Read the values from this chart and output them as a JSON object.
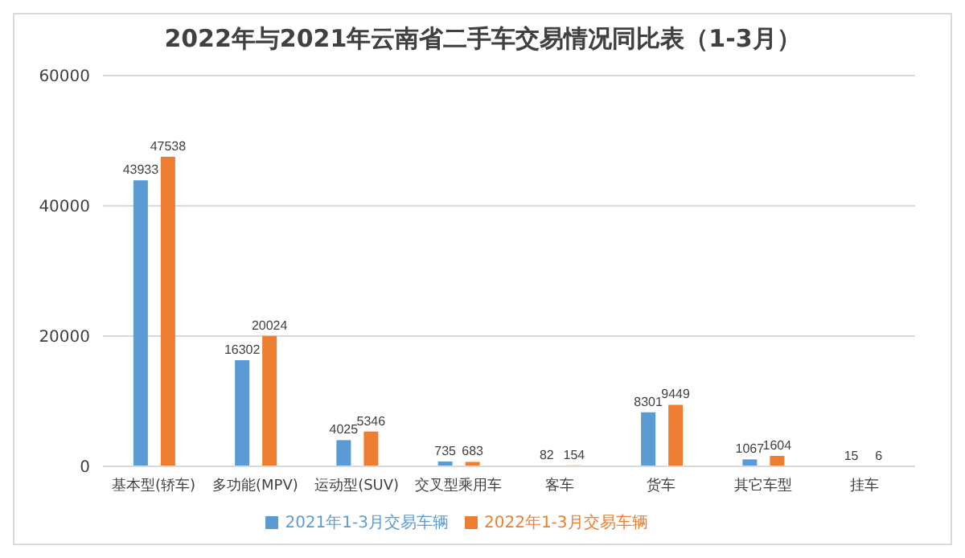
{
  "chart_data": {
    "type": "bar",
    "title": "2022年与2021年云南省二手车交易情况同比表（1-3月）",
    "categories": [
      "基本型(轿车)",
      "多功能(MPV)",
      "运动型(SUV)",
      "交叉型乘用车",
      "客车",
      "货车",
      "其它车型",
      "挂车"
    ],
    "series": [
      {
        "name": "2021年1-3月交易车辆",
        "color": "#5b9bd5",
        "values": [
          43933,
          16302,
          4025,
          735,
          82,
          8301,
          1067,
          15
        ]
      },
      {
        "name": "2022年1-3月交易车辆",
        "color": "#ed7d31",
        "values": [
          47538,
          20024,
          5346,
          683,
          154,
          9449,
          1604,
          6
        ]
      }
    ],
    "ylim": [
      0,
      60000
    ],
    "yticks": [
      0,
      20000,
      40000,
      60000
    ],
    "grid": "y",
    "legend": "bottom",
    "data_labels": true
  }
}
